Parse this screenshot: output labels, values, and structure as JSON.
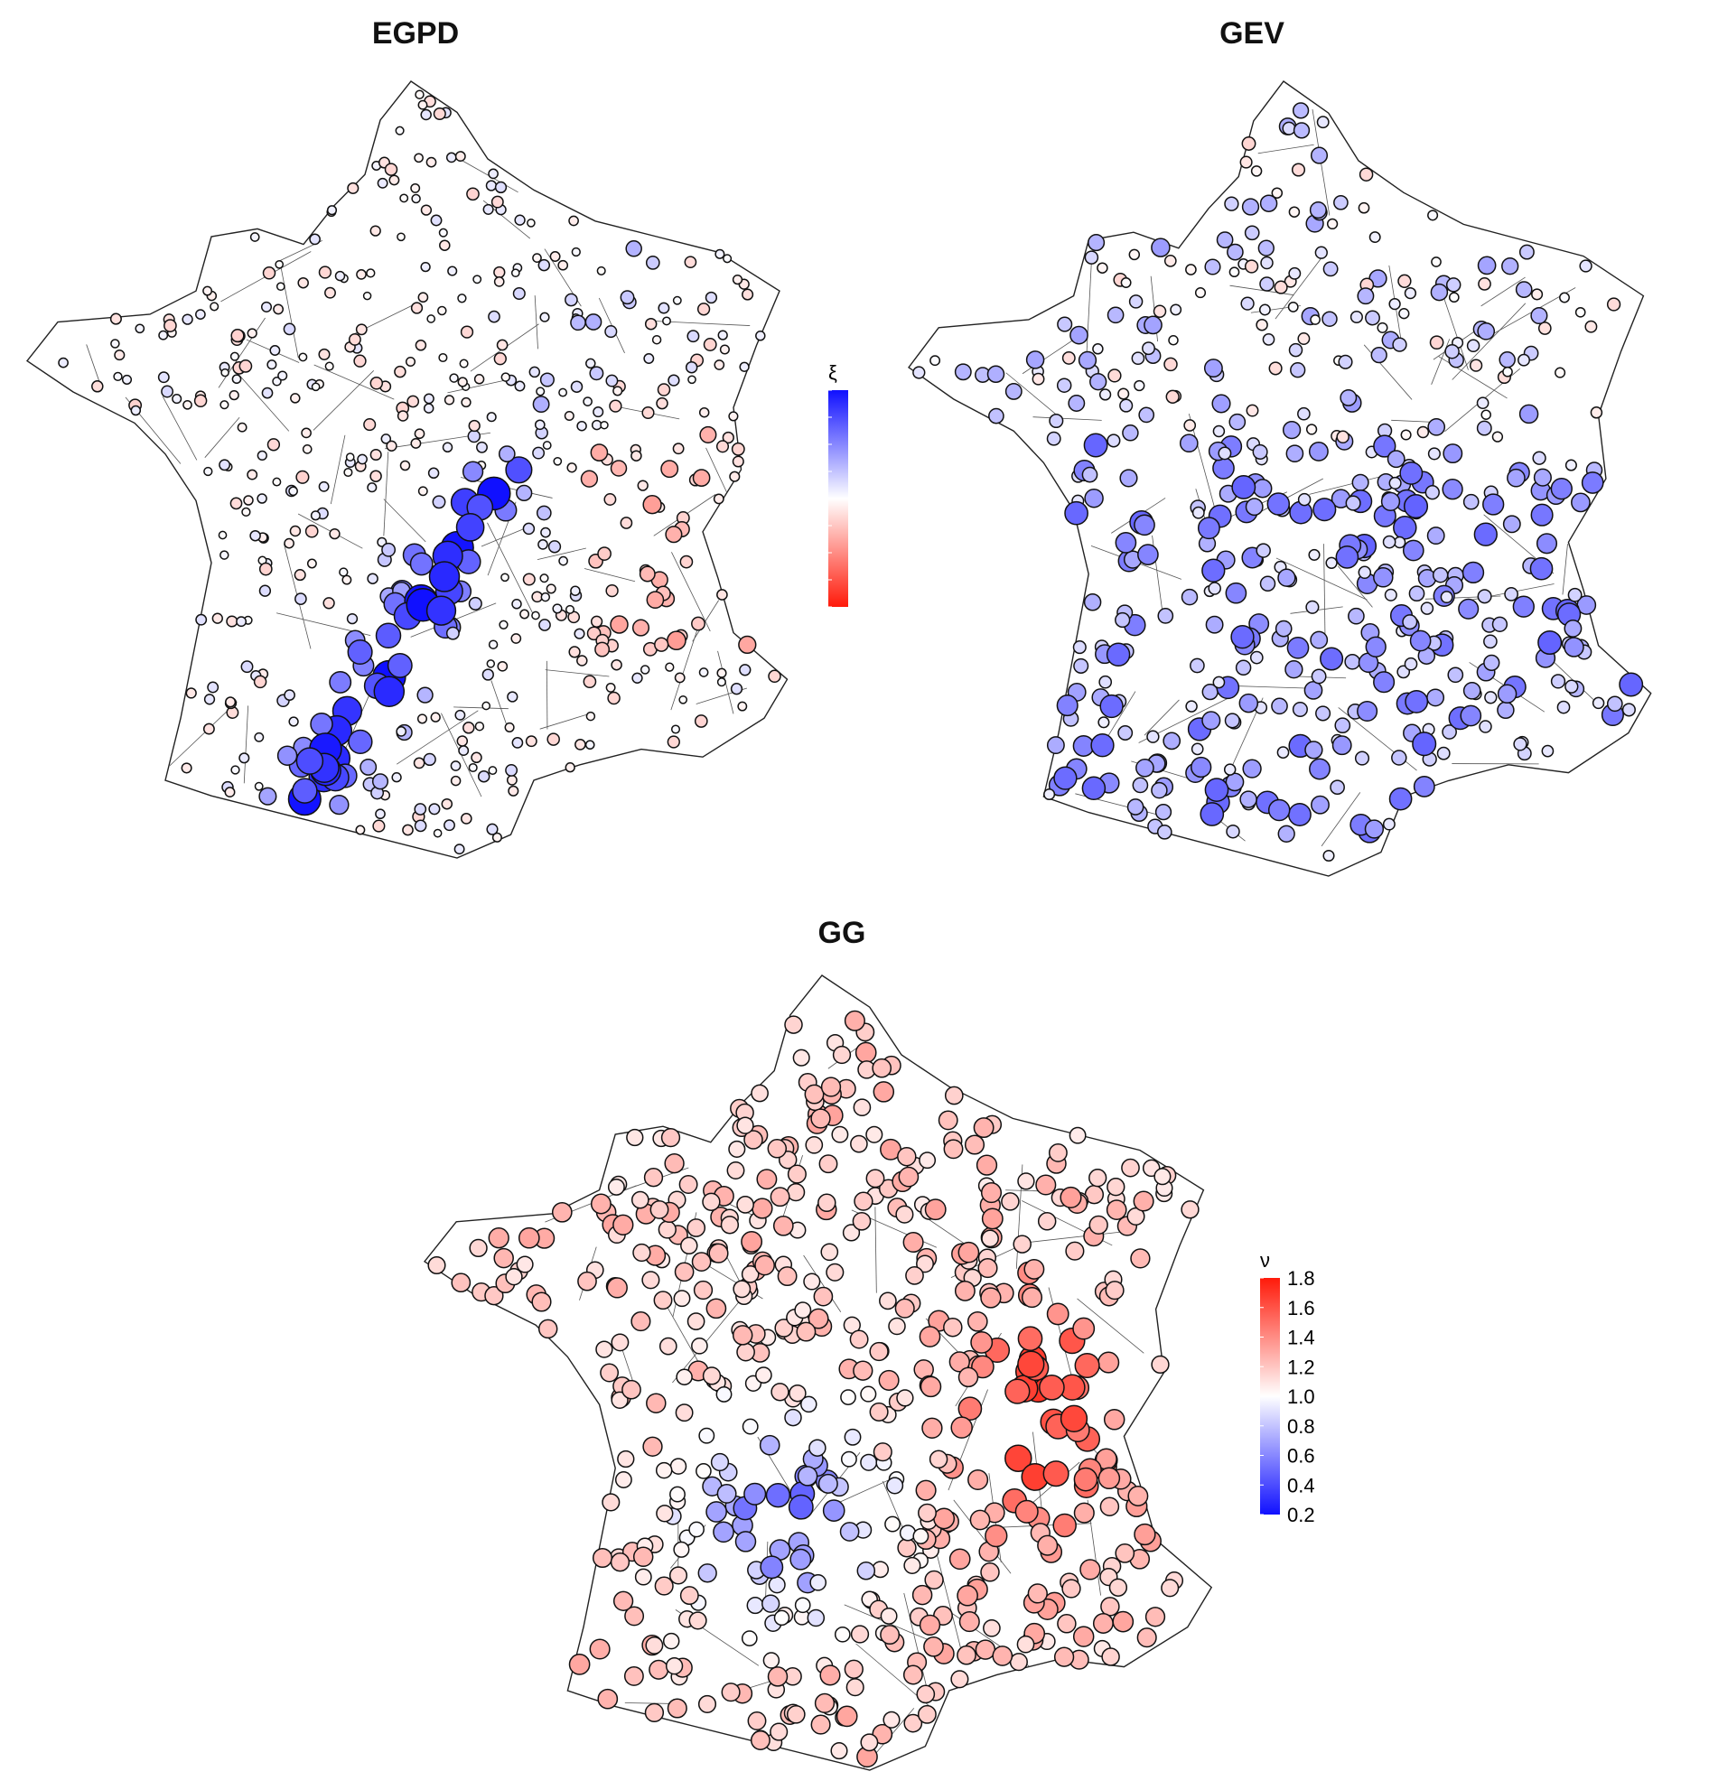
{
  "panels": [
    {
      "id": "egpd",
      "title": "EGPD",
      "legend": "xi"
    },
    {
      "id": "gev",
      "title": "GEV",
      "legend": null
    },
    {
      "id": "gg",
      "title": "GG",
      "legend": "nu"
    }
  ],
  "legends": {
    "xi": {
      "title": "ξ",
      "ticks": [
        "0.4",
        "0.3",
        "0.2",
        "0.1",
        "0.0",
        "-0.1",
        "-0.2",
        "-0.3",
        "-0.4"
      ],
      "range": [
        -0.4,
        0.4
      ],
      "colors": {
        "high": "#1010ff",
        "mid": "#ffffff",
        "low": "#ff1a0a"
      }
    },
    "nu": {
      "title": "ν",
      "ticks": [
        "1.8",
        "1.6",
        "1.4",
        "1.2",
        "1.0",
        "0.8",
        "0.6",
        "0.4",
        "0.2"
      ],
      "range": [
        0.2,
        1.8
      ],
      "colors": {
        "high": "#ff1a0a",
        "mid": "#ffffff",
        "low": "#1010ff"
      }
    }
  },
  "colors": {
    "outline": "#222222",
    "station_stroke": "#111111",
    "background": "#ffffff"
  },
  "map": {
    "type": "point-map",
    "region": "France (departments)",
    "encoding": "point color = parameter value, point size = parameter magnitude"
  }
}
